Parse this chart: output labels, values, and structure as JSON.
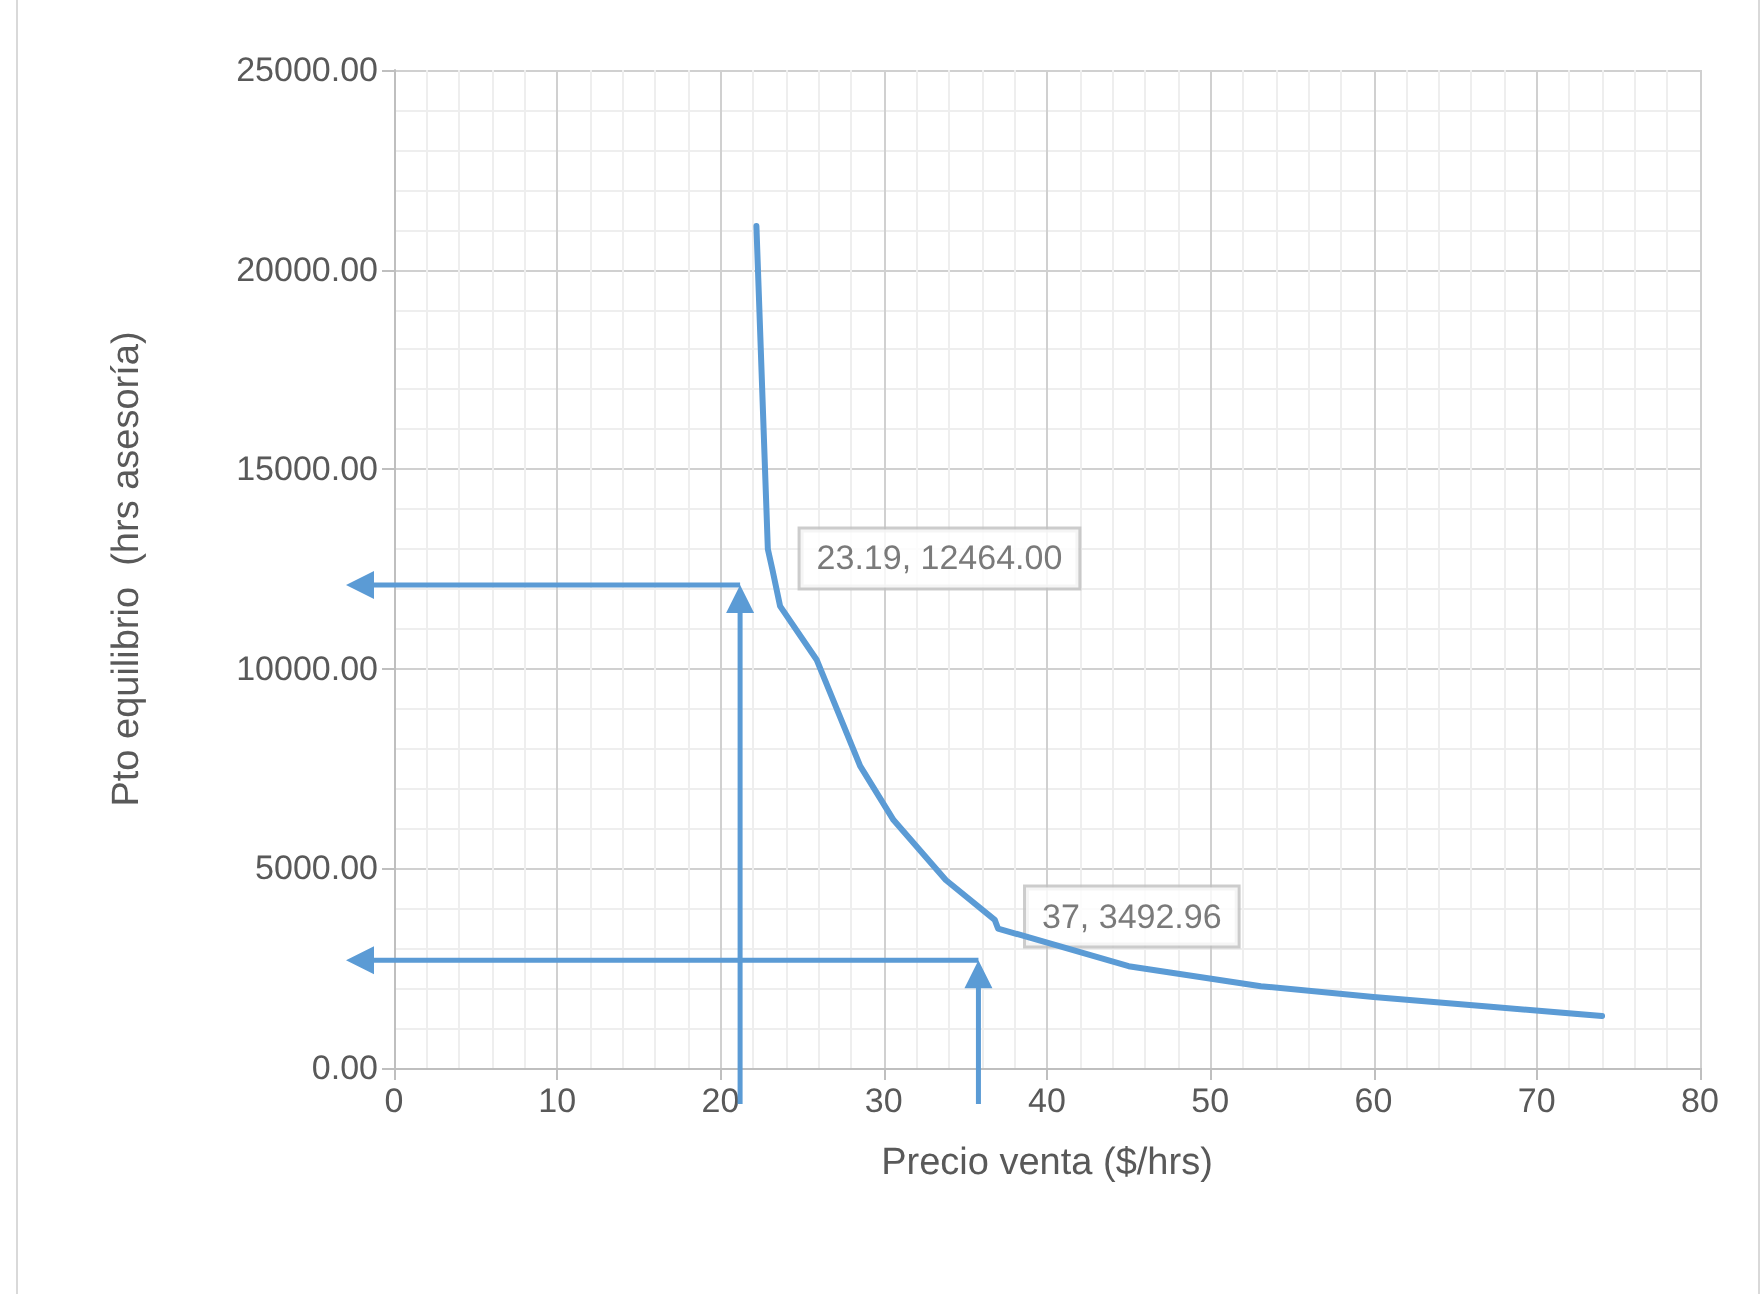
{
  "chart_data": {
    "type": "line",
    "xlabel": "Precio venta ($/hrs)",
    "ylabel": "Pto equilibrio  (hrs asesoría)",
    "series": [
      {
        "color": "#5b9bd5",
        "x": [
          22.2,
          22.9,
          23.19,
          23.65,
          25.9,
          28.55,
          30.6,
          33.8,
          36.8,
          37,
          45,
          53.1,
          60,
          67,
          74
        ],
        "values": [
          21090,
          13000,
          12464,
          11570,
          10220,
          7570,
          6210,
          4710,
          3710,
          3492.96,
          2550,
          2050,
          1780,
          1540,
          1300
        ]
      }
    ],
    "xlim": [
      0,
      80
    ],
    "xticks": [
      0,
      10,
      20,
      30,
      40,
      50,
      60,
      70,
      80
    ],
    "ylim": [
      0,
      25000
    ],
    "yticks": [
      {
        "value": 0,
        "label": "0.00"
      },
      {
        "value": 5000,
        "label": "5000.00"
      },
      {
        "value": 10000,
        "label": "10000.00"
      },
      {
        "value": 15000,
        "label": "15000.00"
      },
      {
        "value": 20000,
        "label": "20000.00"
      },
      {
        "value": 25000,
        "label": "25000.00"
      }
    ],
    "annotations": [
      {
        "text": "23.19, 12464.00",
        "x": 23.19,
        "y": 12464
      },
      {
        "text": "37, 3492.96",
        "x": 37,
        "y": 3492.96
      }
    ],
    "grid": true,
    "marker": "none",
    "line_style": "solid"
  }
}
